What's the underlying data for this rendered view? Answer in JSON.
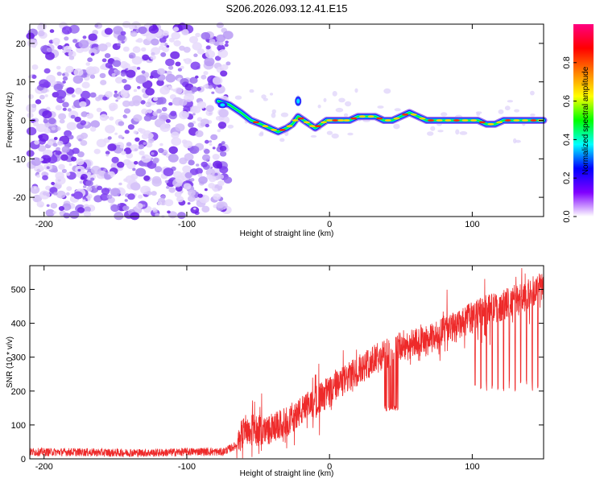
{
  "title": "S206.2026.093.12.41.E15",
  "chart_data": [
    {
      "type": "heatmap",
      "panel": "spectrogram",
      "xlabel": "Height of straight line (km)",
      "ylabel": "Frequency (Hz)",
      "xlim": [
        -210,
        150
      ],
      "ylim": [
        -25,
        25
      ],
      "xticks": [
        -200,
        -100,
        0,
        100
      ],
      "yticks": [
        -20,
        -10,
        0,
        10,
        20
      ],
      "noise_region_end_km": -75,
      "ridge": {
        "x": [
          -78,
          -70,
          -62,
          -55,
          -48,
          -42,
          -36,
          -30,
          -26,
          -22,
          -18,
          -14,
          -10,
          -6,
          -2,
          2,
          6,
          10,
          14,
          20,
          26,
          32,
          38,
          44,
          50,
          56,
          62,
          68,
          74,
          80,
          86,
          92,
          98,
          104,
          110,
          116,
          122,
          128,
          134,
          140,
          146,
          150
        ],
        "freq": [
          5,
          4,
          2,
          0,
          -1,
          -2,
          -3,
          -2,
          -1,
          1,
          0,
          -1,
          -2,
          -1,
          0,
          0,
          0,
          0,
          0,
          1,
          1,
          1,
          0,
          0,
          1,
          2,
          1,
          0,
          0,
          0,
          0,
          0,
          0,
          0,
          -1,
          -1,
          0,
          0,
          0,
          0,
          0,
          0
        ]
      },
      "colorbar": {
        "label": "Normalized spectral amplitude",
        "range": [
          0,
          1
        ],
        "ticks": [
          "0.0",
          "0.2",
          "0.4",
          "0.6",
          "0.8"
        ],
        "tick_values": [
          0.0,
          0.2,
          0.4,
          0.6,
          0.8
        ],
        "colors": [
          "#ffffff",
          "#8000ff",
          "#0000ff",
          "#00ffff",
          "#00ff00",
          "#ffff00",
          "#ff8000",
          "#ff0000",
          "#ff0080"
        ]
      }
    },
    {
      "type": "line",
      "panel": "snr",
      "xlabel": "Height of straight line (km)",
      "ylabel": "SNR (10 * v/v)",
      "xlim": [
        -210,
        150
      ],
      "ylim": [
        0,
        570
      ],
      "xticks": [
        -200,
        -100,
        0,
        100
      ],
      "yticks": [
        0,
        100,
        200,
        300,
        400,
        500
      ],
      "color": "#ee2a2a",
      "series": [
        {
          "name": "SNR",
          "x": [
            -210,
            -180,
            -150,
            -120,
            -90,
            -75,
            -65,
            -60,
            -50,
            -40,
            -30,
            -20,
            -10,
            0,
            10,
            20,
            30,
            40,
            45,
            50,
            60,
            70,
            80,
            90,
            100,
            110,
            120,
            130,
            140,
            150
          ],
          "values": [
            20,
            20,
            18,
            18,
            22,
            20,
            40,
            90,
            80,
            90,
            110,
            140,
            170,
            200,
            230,
            260,
            290,
            310,
            320,
            330,
            340,
            350,
            380,
            390,
            420,
            440,
            450,
            470,
            490,
            510
          ]
        }
      ],
      "dropouts": {
        "ranges_km": [
          [
            38,
            48
          ]
        ],
        "level": 140,
        "spike_x_km": [
          102,
          106,
          110,
          114,
          118,
          122,
          126,
          130,
          134,
          138,
          142,
          146
        ],
        "spike_level": 200
      }
    }
  ]
}
